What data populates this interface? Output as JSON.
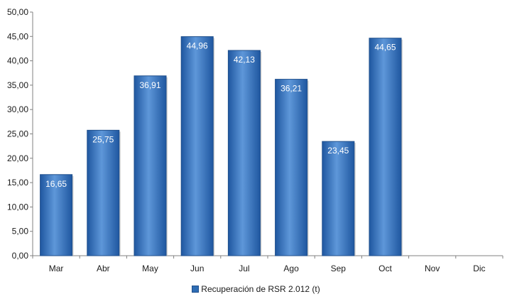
{
  "chart_data": {
    "type": "bar",
    "categories": [
      "Mar",
      "Abr",
      "May",
      "Jun",
      "Jul",
      "Ago",
      "Sep",
      "Oct",
      "Nov",
      "Dic"
    ],
    "series": [
      {
        "name": "Recuperación de RSR 2.012 (t)",
        "values": [
          16.65,
          25.75,
          36.91,
          44.96,
          42.13,
          36.21,
          23.45,
          44.65,
          null,
          null
        ],
        "data_labels": [
          "16,65",
          "25,75",
          "36,91",
          "44,96",
          "42,13",
          "36,21",
          "23,45",
          "44,65",
          "",
          ""
        ]
      }
    ],
    "yticks": [
      "0,00",
      "5,00",
      "10,00",
      "15,00",
      "20,00",
      "25,00",
      "30,00",
      "35,00",
      "40,00",
      "45,00",
      "50,00"
    ],
    "ylim": [
      0,
      50
    ],
    "title": "",
    "xlabel": "",
    "ylabel": "",
    "grid": false,
    "legend_position": "bottom",
    "bar_color": "#2e6db4",
    "bar_highlight": "#5e97d9",
    "bar_edge": "#1f4f8c"
  }
}
